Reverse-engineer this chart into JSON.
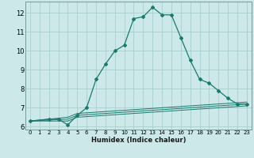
{
  "xlabel": "Humidex (Indice chaleur)",
  "background_color": "#cce8e8",
  "grid_color": "#aacfcf",
  "line_color": "#1a7a6e",
  "xlim": [
    -0.5,
    23.5
  ],
  "ylim": [
    5.85,
    12.6
  ],
  "yticks": [
    6,
    7,
    8,
    9,
    10,
    11,
    12
  ],
  "xticks": [
    0,
    1,
    2,
    3,
    4,
    5,
    6,
    7,
    8,
    9,
    10,
    11,
    12,
    13,
    14,
    15,
    16,
    17,
    18,
    19,
    20,
    21,
    22,
    23
  ],
  "series": [
    [
      0,
      6.3
    ],
    [
      2,
      6.4
    ],
    [
      3,
      6.4
    ],
    [
      4,
      6.1
    ],
    [
      5,
      6.6
    ],
    [
      6,
      7.0
    ],
    [
      7,
      8.5
    ],
    [
      8,
      9.3
    ],
    [
      9,
      10.0
    ],
    [
      10,
      10.3
    ],
    [
      11,
      11.7
    ],
    [
      12,
      11.8
    ],
    [
      13,
      12.3
    ],
    [
      14,
      11.9
    ],
    [
      15,
      11.9
    ],
    [
      16,
      10.7
    ],
    [
      17,
      9.5
    ],
    [
      18,
      8.5
    ],
    [
      19,
      8.3
    ],
    [
      20,
      7.9
    ],
    [
      21,
      7.5
    ],
    [
      22,
      7.2
    ],
    [
      23,
      7.2
    ]
  ],
  "extra_lines": [
    {
      "x": [
        0,
        4,
        5,
        23
      ],
      "y": [
        6.3,
        6.3,
        6.5,
        7.1
      ]
    },
    {
      "x": [
        0,
        4,
        5,
        23
      ],
      "y": [
        6.3,
        6.4,
        6.6,
        7.2
      ]
    },
    {
      "x": [
        0,
        4,
        5,
        23
      ],
      "y": [
        6.3,
        6.5,
        6.7,
        7.3
      ]
    }
  ]
}
